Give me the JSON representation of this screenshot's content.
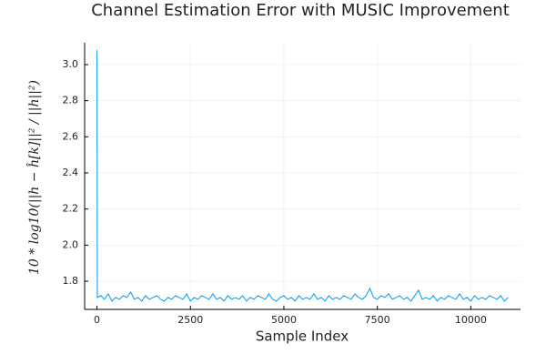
{
  "chart_data": {
    "type": "line",
    "title": "Channel Estimation Error with MUSIC Improvement",
    "x_label": "Sample Index",
    "y_label": "10 * log10(||h − ĥ[k]||² / ||h||²)",
    "color": "#009af9",
    "grid": true,
    "xlim": [
      -330,
      11330
    ],
    "ylim": [
      1.644,
      3.121
    ],
    "xticks": [
      0,
      2500,
      5000,
      7500,
      10000
    ],
    "yticks": [
      1.8,
      {
        "value": 2.0,
        "label": "2.0"
      },
      2.2,
      2.4,
      2.6,
      2.8,
      {
        "value": 3.0,
        "label": "3.0"
      }
    ],
    "x": [
      0,
      10,
      100,
      200,
      300,
      400,
      500,
      600,
      700,
      800,
      900,
      1000,
      1100,
      1200,
      1300,
      1400,
      1500,
      1600,
      1700,
      1800,
      1900,
      2000,
      2100,
      2200,
      2300,
      2400,
      2500,
      2600,
      2700,
      2800,
      2900,
      3000,
      3100,
      3200,
      3300,
      3400,
      3500,
      3600,
      3700,
      3800,
      3900,
      4000,
      4100,
      4200,
      4300,
      4400,
      4500,
      4600,
      4700,
      4800,
      4900,
      5000,
      5100,
      5200,
      5300,
      5400,
      5500,
      5600,
      5700,
      5800,
      5900,
      6000,
      6100,
      6200,
      6300,
      6400,
      6500,
      6600,
      6700,
      6800,
      6900,
      7000,
      7100,
      7200,
      7300,
      7400,
      7500,
      7600,
      7700,
      7800,
      7900,
      8000,
      8100,
      8200,
      8300,
      8400,
      8500,
      8600,
      8700,
      8800,
      8900,
      9000,
      9100,
      9200,
      9300,
      9400,
      9500,
      9600,
      9700,
      9800,
      9900,
      10000,
      10100,
      10200,
      10300,
      10400,
      10500,
      10600,
      10700,
      10800,
      10900,
      11000
    ],
    "values": [
      3.08,
      1.71,
      1.72,
      1.7,
      1.73,
      1.69,
      1.71,
      1.7,
      1.72,
      1.71,
      1.74,
      1.7,
      1.71,
      1.69,
      1.72,
      1.7,
      1.71,
      1.72,
      1.7,
      1.69,
      1.71,
      1.7,
      1.72,
      1.71,
      1.7,
      1.73,
      1.69,
      1.71,
      1.7,
      1.72,
      1.71,
      1.7,
      1.73,
      1.7,
      1.71,
      1.69,
      1.72,
      1.7,
      1.71,
      1.7,
      1.72,
      1.69,
      1.71,
      1.7,
      1.72,
      1.71,
      1.7,
      1.73,
      1.7,
      1.69,
      1.71,
      1.72,
      1.7,
      1.71,
      1.69,
      1.72,
      1.7,
      1.71,
      1.7,
      1.73,
      1.7,
      1.71,
      1.69,
      1.72,
      1.7,
      1.71,
      1.7,
      1.72,
      1.71,
      1.7,
      1.73,
      1.71,
      1.7,
      1.72,
      1.76,
      1.71,
      1.7,
      1.72,
      1.71,
      1.73,
      1.7,
      1.71,
      1.72,
      1.7,
      1.71,
      1.69,
      1.72,
      1.75,
      1.7,
      1.71,
      1.7,
      1.72,
      1.69,
      1.71,
      1.7,
      1.72,
      1.71,
      1.7,
      1.73,
      1.7,
      1.71,
      1.69,
      1.72,
      1.7,
      1.71,
      1.7,
      1.72,
      1.71,
      1.7,
      1.72,
      1.69,
      1.71
    ]
  }
}
